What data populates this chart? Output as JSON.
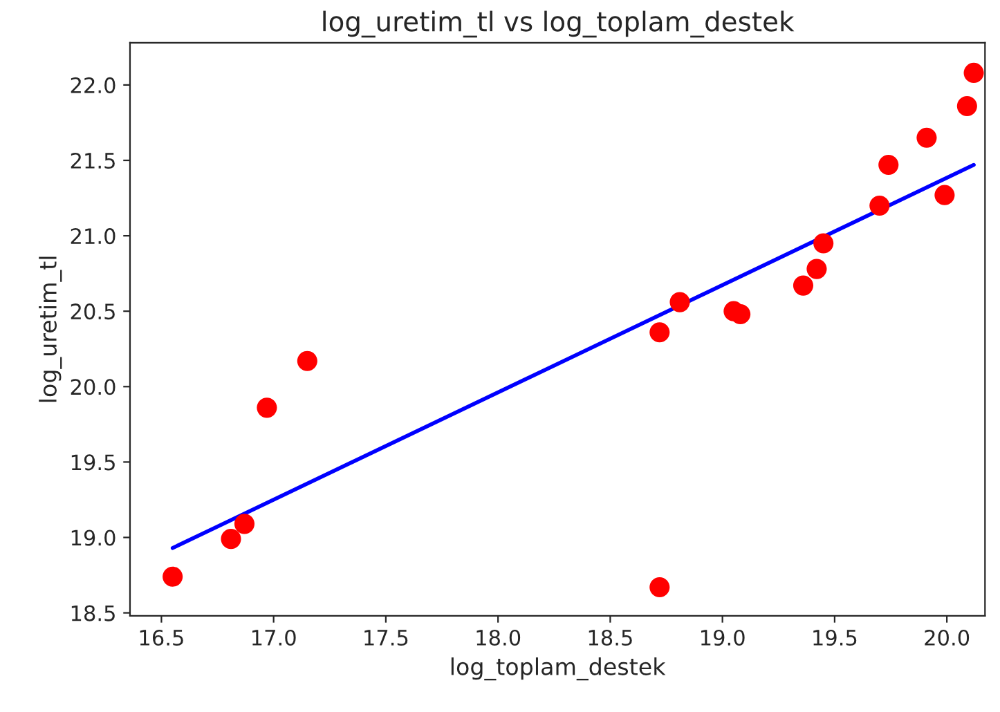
{
  "chart_data": {
    "type": "scatter",
    "title": "log_uretim_tl vs log_toplam_destek",
    "xlabel": "log_toplam_destek",
    "ylabel": "log_uretim_tl",
    "series": [
      {
        "color": "#ff0000",
        "marker": "circle",
        "x": [
          16.55,
          16.81,
          16.87,
          16.97,
          17.15,
          18.72,
          18.81,
          18.72,
          19.05,
          19.08,
          19.36,
          19.42,
          19.45,
          19.7,
          19.74,
          19.91,
          19.99,
          20.09,
          20.12
        ],
        "values": [
          18.74,
          18.99,
          19.09,
          19.86,
          20.17,
          20.36,
          20.56,
          18.67,
          20.5,
          20.48,
          20.67,
          20.78,
          20.95,
          21.2,
          21.47,
          21.65,
          21.27,
          21.86,
          22.08
        ]
      },
      {
        "type": "line",
        "color": "#0000ff",
        "line_style": "solid",
        "x": [
          16.55,
          20.12
        ],
        "values": [
          18.93,
          21.47
        ]
      }
    ],
    "xlim": [
      16.36,
      20.17
    ],
    "ylim": [
      18.48,
      22.28
    ],
    "xticks": [
      16.5,
      {
        "value": 17,
        "label": "17.0"
      },
      17.5,
      {
        "value": 18,
        "label": "18.0"
      },
      18.5,
      {
        "value": 19,
        "label": "19.0"
      },
      19.5,
      {
        "value": 20,
        "label": "20.0"
      }
    ],
    "yticks": [
      18.5,
      {
        "value": 19,
        "label": "19.0"
      },
      19.5,
      {
        "value": 20,
        "label": "20.0"
      },
      20.5,
      {
        "value": 21,
        "label": "21.0"
      },
      21.5,
      {
        "value": 22,
        "label": "22.0"
      }
    ],
    "grid": false,
    "legend": false
  }
}
